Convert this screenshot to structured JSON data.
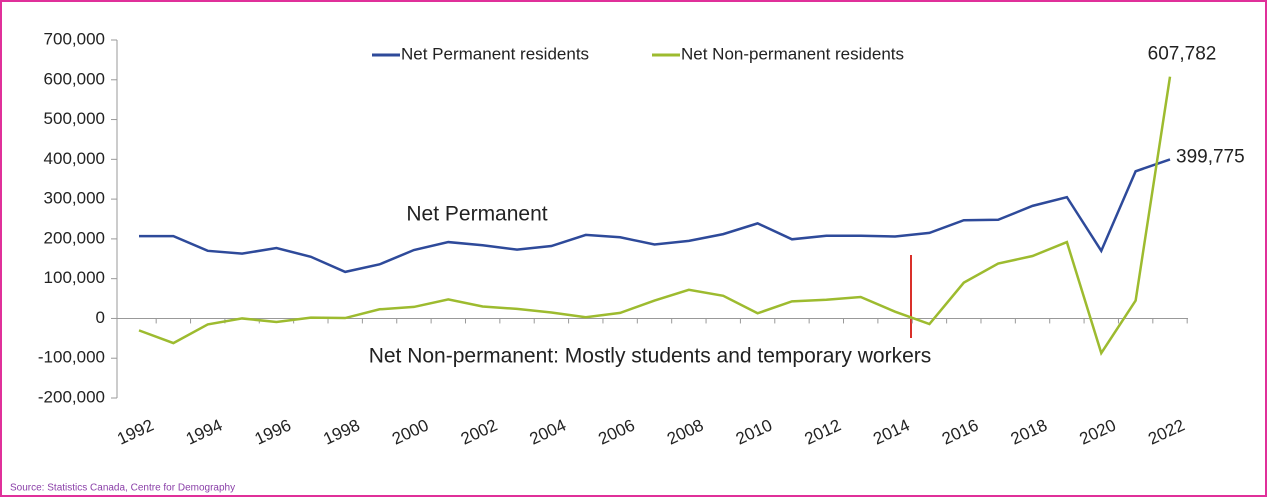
{
  "chart_data": {
    "type": "line",
    "categories": [
      "1992",
      null,
      "1994",
      null,
      "1996",
      null,
      "1998",
      null,
      "2000",
      null,
      "2002",
      null,
      "2004",
      null,
      "2006",
      null,
      "2008",
      null,
      "2010",
      null,
      "2012",
      null,
      "2014",
      null,
      "2016",
      null,
      "2018",
      null,
      "2020",
      null,
      "2022"
    ],
    "series": [
      {
        "name": "Net Permanent residents",
        "color": "#2e4a9a",
        "values": [
          207000,
          207000,
          170000,
          163000,
          177000,
          155000,
          117000,
          136000,
          172000,
          192000,
          184000,
          173000,
          182000,
          210000,
          204000,
          186000,
          195000,
          212000,
          239000,
          199000,
          208000,
          208000,
          206000,
          215000,
          247000,
          248000,
          283000,
          305000,
          170000,
          370000,
          399775
        ],
        "value_labels": [
          null,
          null,
          null,
          null,
          null,
          null,
          null,
          null,
          null,
          null,
          null,
          null,
          null,
          null,
          null,
          null,
          null,
          null,
          null,
          null,
          null,
          null,
          null,
          null,
          null,
          null,
          null,
          null,
          null,
          null,
          "399,775"
        ]
      },
      {
        "name": "Net Non-permanent residents",
        "color": "#9dbb2f",
        "values": [
          -30000,
          -62000,
          -15000,
          0,
          -9000,
          2000,
          1000,
          23000,
          29000,
          48000,
          30000,
          24000,
          15000,
          3000,
          14000,
          45000,
          72000,
          57000,
          13000,
          43000,
          47000,
          54000,
          17000,
          -14000,
          90000,
          138000,
          157000,
          192000,
          -87000,
          45000,
          607782
        ],
        "value_labels": [
          null,
          null,
          null,
          null,
          null,
          null,
          null,
          null,
          null,
          null,
          null,
          null,
          null,
          null,
          null,
          null,
          null,
          null,
          null,
          null,
          null,
          null,
          null,
          null,
          null,
          null,
          null,
          null,
          null,
          null,
          "607,782"
        ]
      }
    ],
    "ylim": [
      -200000,
      700000
    ],
    "yticks": [
      {
        "value": -200000,
        "label": "-200,000"
      },
      {
        "value": -100000,
        "label": "-100,000"
      },
      0,
      {
        "value": 100000,
        "label": "100,000"
      },
      {
        "value": 200000,
        "label": "200,000"
      },
      {
        "value": 300000,
        "label": "300,000"
      },
      {
        "value": 400000,
        "label": "400,000"
      },
      {
        "value": 500000,
        "label": "500,000"
      },
      {
        "value": 600000,
        "label": "600,000"
      },
      {
        "value": 700000,
        "label": "700,000"
      }
    ],
    "grid": false,
    "legend": "top",
    "annotations": [
      "Net Permanent",
      "Net Non-permanent: Mostly students and temporary workers"
    ],
    "source": "Source: Statistics Canada, Centre for Demography"
  }
}
